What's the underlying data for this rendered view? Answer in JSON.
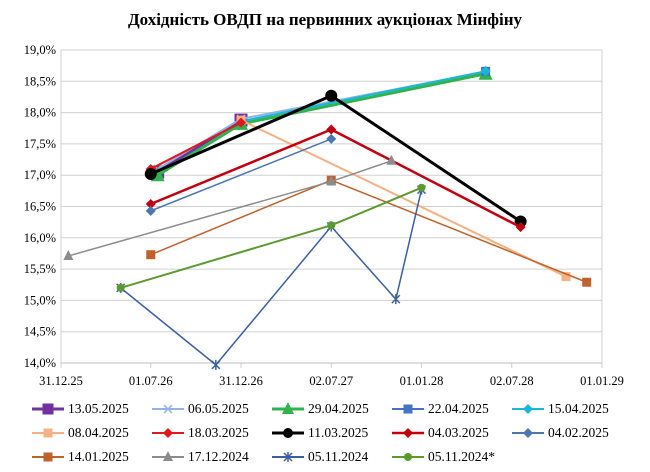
{
  "chart_data": {
    "type": "line",
    "title": "Дохідність ОВДП на первинних аукціонах Мінфіну",
    "xlabel": "",
    "ylabel": "",
    "ylim": [
      14.0,
      19.0
    ],
    "y_ticks": [
      "14,0%",
      "14,5%",
      "15,0%",
      "15,5%",
      "16,0%",
      "16,5%",
      "17,0%",
      "17,5%",
      "18,0%",
      "18,5%",
      "19,0%"
    ],
    "xlim": [
      "2025-12-31",
      "2029-01-01"
    ],
    "x_ticks": [
      {
        "date": "2025-12-31",
        "label": "31.12.25"
      },
      {
        "date": "2026-07-01",
        "label": "01.07.26"
      },
      {
        "date": "2026-12-31",
        "label": "31.12.26"
      },
      {
        "date": "2027-07-02",
        "label": "02.07.27"
      },
      {
        "date": "2028-01-01",
        "label": "01.01.28"
      },
      {
        "date": "2028-07-02",
        "label": "02.07.28"
      },
      {
        "date": "2029-01-01",
        "label": "01.01.29"
      }
    ],
    "grid": "horizontal",
    "legend_position": "bottom",
    "series": [
      {
        "name": "13.05.2025",
        "color": "#7030a0",
        "marker": "square",
        "width": 3,
        "points": [
          [
            "2026-07-15",
            17.05
          ],
          [
            "2026-12-31",
            17.88
          ]
        ]
      },
      {
        "name": "06.05.2025",
        "color": "#8fb4e3",
        "marker": "cross",
        "width": 2,
        "points": [
          [
            "2026-07-15",
            17.1
          ],
          [
            "2026-12-31",
            17.9
          ],
          [
            "2028-05-10",
            18.65
          ]
        ]
      },
      {
        "name": "29.04.2025",
        "color": "#2eb34d",
        "marker": "triangle",
        "width": 3,
        "points": [
          [
            "2026-07-15",
            17.0
          ],
          [
            "2026-12-31",
            17.82
          ],
          [
            "2028-05-10",
            18.62
          ]
        ]
      },
      {
        "name": "22.04.2025",
        "color": "#4472c4",
        "marker": "square",
        "width": 2,
        "points": [
          [
            "2028-05-10",
            18.66
          ]
        ]
      },
      {
        "name": "15.04.2025",
        "color": "#1ab6d8",
        "marker": "diamond",
        "width": 2,
        "points": [
          [
            "2026-12-31",
            17.86
          ],
          [
            "2028-05-10",
            18.66
          ]
        ]
      },
      {
        "name": "08.04.2025",
        "color": "#f4b183",
        "marker": "square",
        "width": 2,
        "points": [
          [
            "2026-12-31",
            17.88
          ],
          [
            "2028-10-20",
            15.38
          ]
        ]
      },
      {
        "name": "18.03.2025",
        "color": "#e0181b",
        "marker": "diamond",
        "width": 2,
        "points": [
          [
            "2026-07-01",
            17.1
          ],
          [
            "2026-12-31",
            17.84
          ]
        ]
      },
      {
        "name": "11.03.2025",
        "color": "#000000",
        "marker": "circle",
        "width": 3,
        "points": [
          [
            "2026-07-01",
            17.02
          ],
          [
            "2027-07-02",
            18.27
          ],
          [
            "2028-07-20",
            16.26
          ]
        ]
      },
      {
        "name": "04.03.2025",
        "color": "#c0000f",
        "marker": "diamond",
        "width": 2.5,
        "points": [
          [
            "2026-07-01",
            16.54
          ],
          [
            "2027-07-02",
            17.73
          ],
          [
            "2028-07-20",
            16.17
          ]
        ]
      },
      {
        "name": "04.02.2025",
        "color": "#4a77b0",
        "marker": "diamond",
        "width": 1.5,
        "points": [
          [
            "2026-07-01",
            16.43
          ],
          [
            "2027-07-02",
            17.58
          ]
        ]
      },
      {
        "name": "14.01.2025",
        "color": "#c0622b",
        "marker": "square",
        "width": 1.5,
        "points": [
          [
            "2026-07-01",
            15.73
          ],
          [
            "2027-07-02",
            16.92
          ],
          [
            "2028-12-01",
            15.29
          ]
        ]
      },
      {
        "name": "17.12.2024",
        "color": "#8c8c8c",
        "marker": "triangle",
        "width": 1.5,
        "points": [
          [
            "2026-01-15",
            15.71
          ],
          [
            "2027-07-02",
            16.9
          ],
          [
            "2027-11-01",
            17.23
          ]
        ]
      },
      {
        "name": "05.11.2024",
        "color": "#3b5fa0",
        "marker": "star",
        "width": 1.5,
        "points": [
          [
            "2026-05-01",
            15.2
          ],
          [
            "2026-11-10",
            13.97
          ],
          [
            "2027-07-02",
            16.18
          ],
          [
            "2027-11-10",
            15.02
          ],
          [
            "2028-01-01",
            16.77
          ]
        ]
      },
      {
        "name": "05.11.2024*",
        "color": "#5a9a2e",
        "marker": "circle",
        "width": 2,
        "points": [
          [
            "2026-05-01",
            15.2
          ],
          [
            "2027-07-02",
            16.2
          ],
          [
            "2028-01-01",
            16.8
          ]
        ]
      }
    ]
  }
}
